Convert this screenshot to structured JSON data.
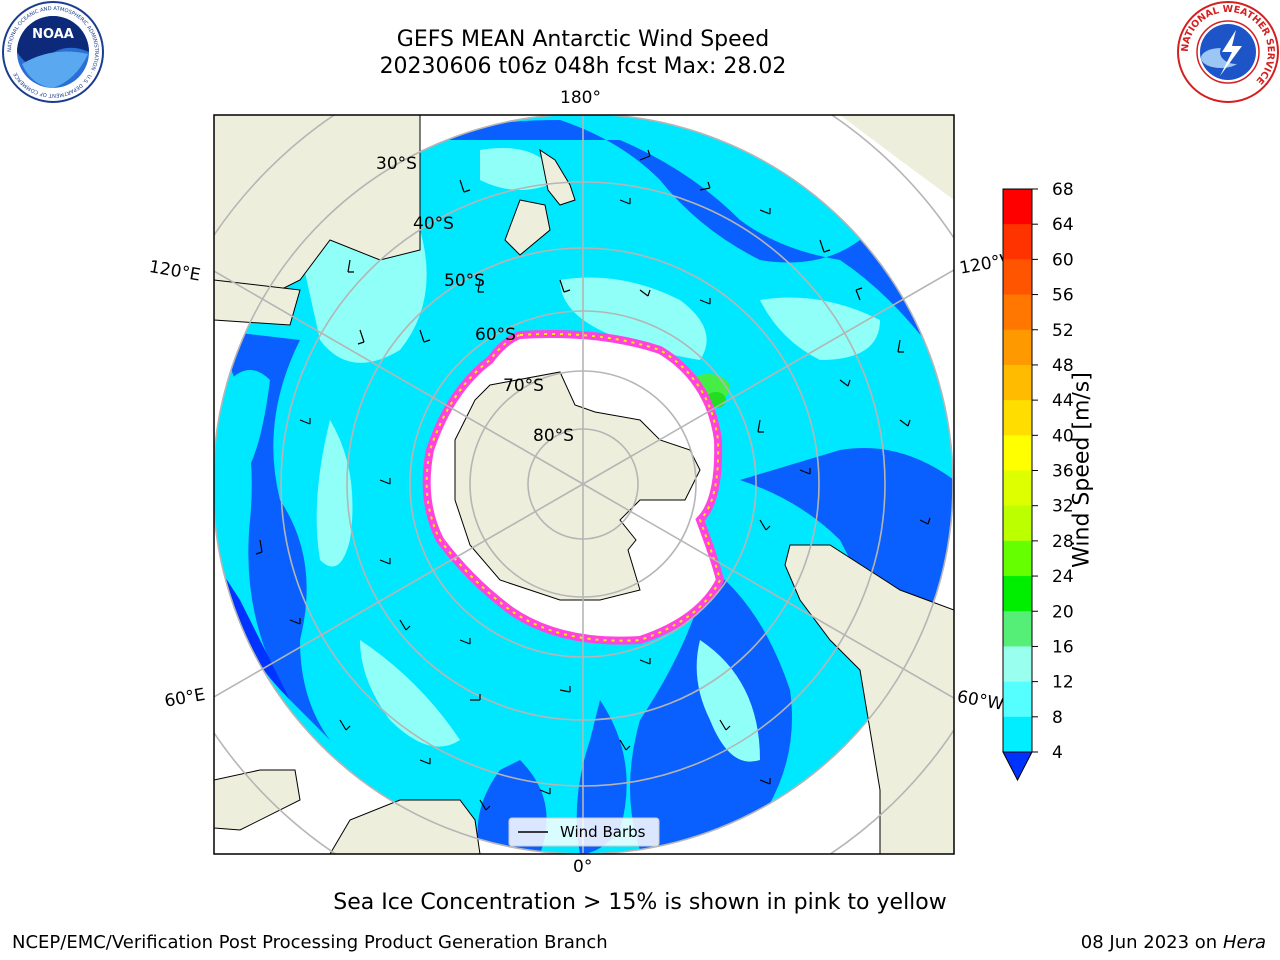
{
  "header": {
    "title_line1": "GEFS MEAN Antarctic Wind Speed",
    "title_line2": "20230606 t06z 048h fcst   Max: 28.02"
  },
  "logos": {
    "left": "NOAA",
    "left_ring_text": "NATIONAL OCEANIC AND ATMOSPHERIC ADMINISTRATION · U.S. DEPARTMENT OF COMMERCE",
    "right_ring_text": "NATIONAL WEATHER SERVICE"
  },
  "map": {
    "longitude_labels": {
      "top": "180°",
      "bottom": "0°",
      "upper_left": "120°E",
      "lower_left": "60°E",
      "upper_right": "120°W",
      "lower_right": "60°W"
    },
    "latitude_labels": [
      "30°S",
      "40°S",
      "50°S",
      "60°S",
      "70°S",
      "80°S"
    ],
    "legend_label": "Wind Barbs"
  },
  "colorbar": {
    "label": "Wind Speed [m/s]",
    "ticks": [
      "68",
      "64",
      "60",
      "56",
      "52",
      "48",
      "44",
      "40",
      "36",
      "32",
      "28",
      "24",
      "20",
      "16",
      "12",
      "8",
      "4"
    ],
    "colors": [
      "#ff0000",
      "#ff3300",
      "#ff5500",
      "#ff7700",
      "#ff9900",
      "#ffbb00",
      "#ffdd00",
      "#ffff00",
      "#ddff00",
      "#bbff00",
      "#66ff00",
      "#00ee00",
      "#55ee77",
      "#99ffee",
      "#55ffff",
      "#00eeff",
      "#0099ff",
      "#0033ff"
    ]
  },
  "caption": "Sea Ice Concentration > 15% is shown in pink to yellow",
  "footer": {
    "left": "NCEP/EMC/Verification Post Processing Product Generation Branch",
    "right_prefix": "08 Jun 2023 on",
    "right_host": "Hera"
  },
  "colors": {
    "land": "#eeeedc",
    "ocean_dark": "#0a5fff",
    "ocean_mid": "#00e8ff",
    "ocean_light": "#8ffff8",
    "sea_ice_pink": "#ff44dd",
    "sea_ice_yellow": "#ffee00",
    "grid": "#b5b5b5"
  }
}
